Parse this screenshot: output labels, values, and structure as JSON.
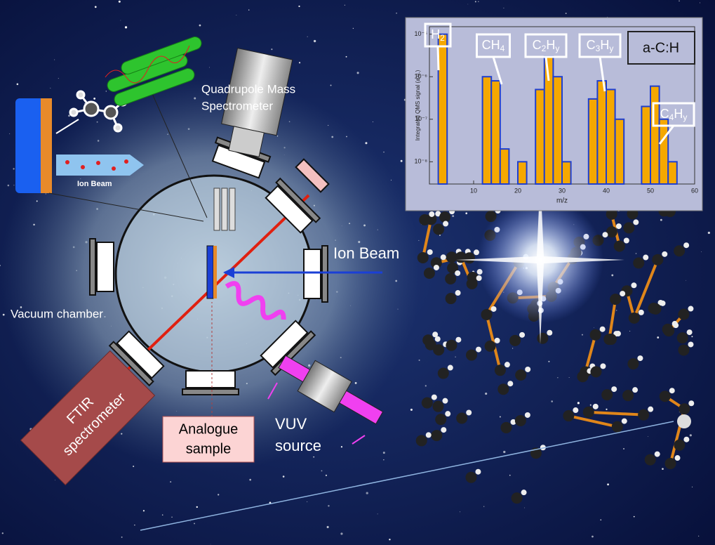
{
  "labels": {
    "qms": [
      "Quadrupole Mass",
      "Spectrometer"
    ],
    "ion_beam_small": "Ion Beam",
    "ion_beam": "Ion Beam",
    "vacuum_chamber": "Vacuum chamber",
    "ftir": [
      "FTIR",
      "spectrometer"
    ],
    "sample": [
      "Analogue",
      "sample"
    ],
    "vuv": [
      "VUV",
      "source"
    ]
  },
  "chart_data": {
    "type": "histogram",
    "x_label": "m/z",
    "y_label": "Integrated QMS signal (a.u.)",
    "log_scale": true,
    "bins": [
      0,
      2,
      4,
      6,
      8,
      10,
      12,
      14,
      16,
      18,
      20,
      22,
      24,
      26,
      28,
      30,
      32,
      34,
      36,
      38,
      40,
      42,
      44,
      46,
      48,
      50,
      52,
      54,
      56,
      58,
      60
    ],
    "series": [
      {
        "name": "a-C:H",
        "color": "#f5a800",
        "edge_color": "#1f3fd0",
        "values": [
          3e-09,
          1e-05,
          3e-09,
          3e-09,
          3e-09,
          3e-09,
          1e-06,
          8e-07,
          2e-08,
          3e-09,
          1e-08,
          3e-09,
          5e-07,
          3e-06,
          1e-06,
          1e-08,
          3e-09,
          3e-09,
          3e-07,
          8e-07,
          5e-07,
          1e-07,
          3e-09,
          3e-09,
          2e-07,
          6e-07,
          1e-07,
          1e-08,
          3e-09,
          3e-09
        ]
      }
    ],
    "xlim": [
      0,
      60
    ],
    "xticks": [
      10,
      20,
      30,
      40,
      50,
      60
    ],
    "ylim": [
      3e-09,
      1.5e-05
    ],
    "yticks": [
      {
        "value": 1e-08,
        "label": "10⁻⁸"
      },
      {
        "value": 1e-07,
        "label": "10⁻⁷"
      },
      {
        "value": 1e-06,
        "label": "10⁻⁶"
      },
      {
        "value": 1e-05,
        "label": "10⁻⁵"
      }
    ],
    "annotations": [
      {
        "parts": [
          "H",
          "2"
        ]
      },
      {
        "parts": [
          "CH",
          "4"
        ]
      },
      {
        "parts": [
          "C",
          "2",
          "H",
          "y"
        ]
      },
      {
        "parts": [
          "C",
          "3",
          "H",
          "y"
        ]
      },
      {
        "parts": [
          "C",
          "4",
          "H",
          "y"
        ]
      }
    ]
  }
}
